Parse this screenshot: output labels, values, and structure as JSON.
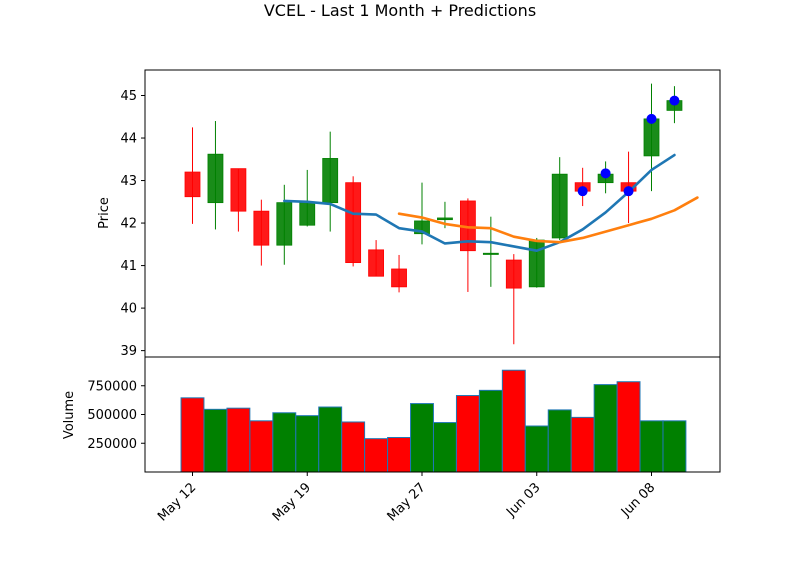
{
  "chart_data": {
    "type": "candlestick",
    "title": "VCEL - Last 1 Month + Predictions",
    "x_tick_labels": [
      "May 12",
      "May 19",
      "May 27",
      "Jun 03",
      "Jun 08"
    ],
    "x_tick_positions": [
      0,
      5,
      10,
      15,
      20
    ],
    "price_panel": {
      "ylabel": "Price",
      "ylim": [
        38.85,
        45.6
      ],
      "y_ticks": [
        39,
        40,
        41,
        42,
        43,
        44,
        45
      ],
      "candles": [
        {
          "open": 43.2,
          "high": 44.25,
          "low": 41.98,
          "close": 42.62
        },
        {
          "open": 42.48,
          "high": 44.4,
          "low": 41.85,
          "close": 43.62
        },
        {
          "open": 43.28,
          "high": 43.28,
          "low": 41.8,
          "close": 42.28
        },
        {
          "open": 42.28,
          "high": 42.55,
          "low": 41.0,
          "close": 41.48
        },
        {
          "open": 41.48,
          "high": 42.9,
          "low": 41.02,
          "close": 42.48
        },
        {
          "open": 41.95,
          "high": 43.25,
          "low": 41.92,
          "close": 42.48
        },
        {
          "open": 42.48,
          "high": 44.15,
          "low": 41.8,
          "close": 43.52
        },
        {
          "open": 42.95,
          "high": 43.1,
          "low": 40.98,
          "close": 41.07
        },
        {
          "open": 41.37,
          "high": 41.6,
          "low": 40.75,
          "close": 40.75
        },
        {
          "open": 40.92,
          "high": 41.25,
          "low": 40.37,
          "close": 40.5
        },
        {
          "open": 41.75,
          "high": 42.95,
          "low": 41.5,
          "close": 42.05
        },
        {
          "open": 42.08,
          "high": 42.5,
          "low": 41.88,
          "close": 42.12
        },
        {
          "open": 42.52,
          "high": 42.58,
          "low": 40.38,
          "close": 41.35
        },
        {
          "open": 41.27,
          "high": 42.15,
          "low": 40.5,
          "close": 41.29
        },
        {
          "open": 41.13,
          "high": 41.27,
          "low": 39.15,
          "close": 40.47
        },
        {
          "open": 40.5,
          "high": 41.65,
          "low": 40.48,
          "close": 41.6
        },
        {
          "open": 41.65,
          "high": 43.55,
          "low": 41.6,
          "close": 43.15
        },
        {
          "open": 42.95,
          "high": 43.3,
          "low": 42.4,
          "close": 42.75
        },
        {
          "open": 42.95,
          "high": 43.45,
          "low": 42.7,
          "close": 43.15
        },
        {
          "open": 42.95,
          "high": 43.68,
          "low": 42.0,
          "close": 42.75
        },
        {
          "open": 43.58,
          "high": 45.28,
          "low": 42.75,
          "close": 44.45
        },
        {
          "open": 44.65,
          "high": 45.22,
          "low": 44.35,
          "close": 44.88
        }
      ],
      "line_series": [
        {
          "color": "#1f77b4",
          "start_index": 4,
          "values": [
            42.52,
            42.5,
            42.45,
            42.22,
            42.2,
            41.88,
            41.8,
            41.52,
            41.57,
            41.55,
            41.45,
            41.35,
            41.55,
            41.85,
            42.25,
            42.73,
            43.25,
            43.6
          ]
        },
        {
          "color": "#ff7f0e",
          "start_index": 9,
          "values": [
            42.22,
            42.13,
            41.98,
            41.9,
            41.88,
            41.68,
            41.58,
            41.55,
            41.65,
            41.8,
            41.95,
            42.1,
            42.3,
            42.6
          ]
        }
      ],
      "prediction_points": [
        {
          "index": 17,
          "value": 42.75
        },
        {
          "index": 18,
          "value": 43.17
        },
        {
          "index": 19,
          "value": 42.75
        },
        {
          "index": 20,
          "value": 44.45
        },
        {
          "index": 21,
          "value": 44.88
        }
      ]
    },
    "volume_panel": {
      "ylabel": "Volume",
      "ylim": [
        0,
        1000000
      ],
      "y_ticks": [
        250000,
        500000,
        750000
      ],
      "y_tick_labels": [
        "250000",
        "500000",
        "750000"
      ],
      "volumes": [
        645000,
        545000,
        555000,
        445000,
        515000,
        490000,
        565000,
        435000,
        290000,
        300000,
        595000,
        430000,
        665000,
        710000,
        885000,
        400000,
        540000,
        475000,
        760000,
        785000,
        445000,
        445000
      ]
    },
    "colors": {
      "up": "#008000",
      "down": "#ff0000",
      "predict": "#0000ff",
      "bar_edge": "#1f77b4"
    }
  }
}
